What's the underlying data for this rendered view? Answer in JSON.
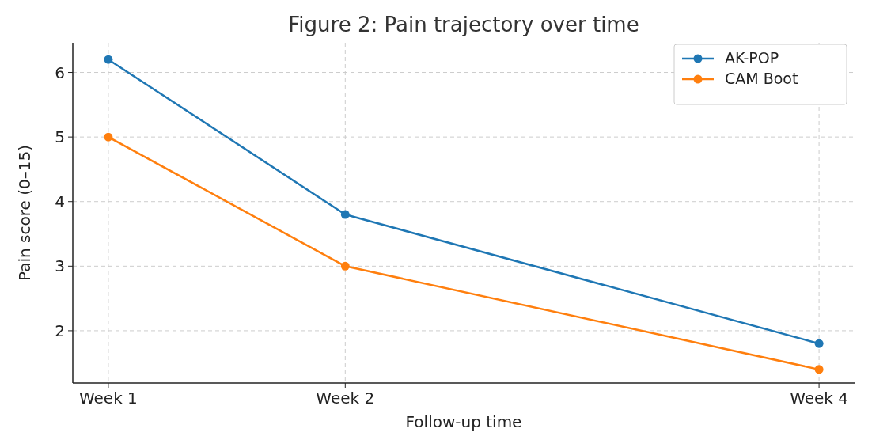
{
  "chart_data": {
    "type": "line",
    "title": "Figure 2: Pain trajectory over time",
    "xlabel": "Follow-up time",
    "ylabel": "Pain score (0–15)",
    "categories": [
      "Week 1",
      "Week 2",
      null,
      "Week 4"
    ],
    "series": [
      {
        "name": "AK-POP",
        "color": "#1f77b4",
        "values": [
          6.2,
          3.8,
          null,
          1.8
        ]
      },
      {
        "name": "CAM Boot",
        "color": "#ff7f0e",
        "values": [
          5.0,
          3.0,
          null,
          1.4
        ]
      }
    ],
    "ylim": [
      1.19,
      6.46
    ],
    "yticks": [
      2,
      3,
      4,
      5,
      6
    ],
    "grid": true,
    "legend": "top right",
    "marker": "circle",
    "line_style": "solid"
  }
}
